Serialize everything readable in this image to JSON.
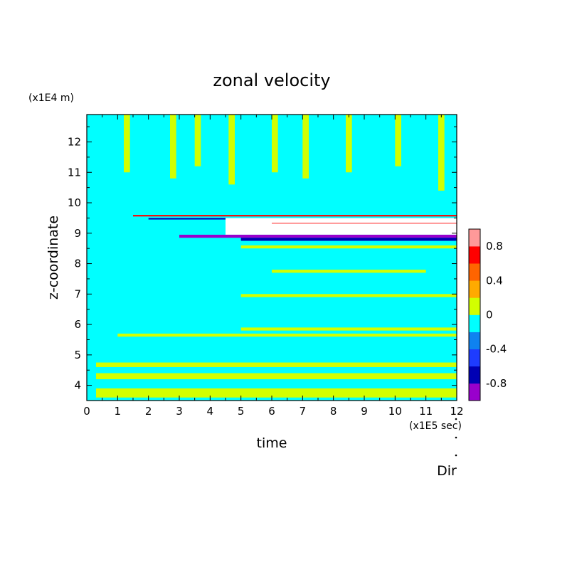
{
  "chart_data": {
    "type": "heatmap",
    "title": "zonal velocity",
    "xlabel": "time",
    "ylabel": "z-coordinate",
    "x_unit": "(x1E5 sec)",
    "y_unit": "(x1E4 m)",
    "xlim": [
      0,
      12
    ],
    "ylim": [
      3.5,
      12.9
    ],
    "x_ticks": [
      "0",
      "1",
      "2",
      "3",
      "4",
      "5",
      "6",
      "7",
      "8",
      "9",
      "10",
      "11",
      "12"
    ],
    "y_ticks": [
      "4",
      "5",
      "6",
      "7",
      "8",
      "9",
      "10",
      "11",
      "12"
    ],
    "x_tick_values": [
      0,
      1,
      2,
      3,
      4,
      5,
      6,
      7,
      8,
      9,
      10,
      11,
      12
    ],
    "y_tick_values": [
      4,
      5,
      6,
      7,
      8,
      9,
      10,
      11,
      12
    ],
    "colorbar": {
      "range": [
        -1.0,
        1.0
      ],
      "step": 0.2,
      "colors": [
        "#9900cc",
        "#0000b4",
        "#1e3cff",
        "#0f82f0",
        "#00ffff",
        "#d2ff00",
        "#ffaa00",
        "#ff6400",
        "#ff0000",
        "#ff9999"
      ],
      "tick_labels": [
        "0.8",
        "0.4",
        "0",
        "-0.4",
        "-0.8"
      ],
      "tick_values": [
        0.8,
        0.4,
        0,
        -0.4,
        -0.8
      ]
    },
    "background_value": -0.1,
    "regions": [
      {
        "t": [
          0.0,
          0.5
        ],
        "z": [
          3.5,
          12.9
        ],
        "v": -0.1
      },
      {
        "t": [
          1.2,
          1.4
        ],
        "z": [
          11.0,
          12.9
        ],
        "v": 0.1
      },
      {
        "t": [
          2.7,
          2.9
        ],
        "z": [
          10.8,
          12.9
        ],
        "v": 0.1
      },
      {
        "t": [
          3.5,
          3.7
        ],
        "z": [
          11.2,
          12.9
        ],
        "v": 0.1
      },
      {
        "t": [
          4.6,
          4.8
        ],
        "z": [
          10.6,
          12.9
        ],
        "v": 0.1
      },
      {
        "t": [
          6.0,
          6.2
        ],
        "z": [
          11.0,
          12.9
        ],
        "v": 0.1
      },
      {
        "t": [
          7.0,
          7.2
        ],
        "z": [
          10.8,
          12.9
        ],
        "v": 0.1
      },
      {
        "t": [
          8.4,
          8.6
        ],
        "z": [
          11.0,
          12.9
        ],
        "v": 0.1
      },
      {
        "t": [
          10.0,
          10.2
        ],
        "z": [
          11.2,
          12.9
        ],
        "v": 0.1
      },
      {
        "t": [
          11.4,
          11.6
        ],
        "z": [
          10.4,
          12.9
        ],
        "v": 0.1
      },
      {
        "t": [
          1.5,
          12.0
        ],
        "z": [
          9.55,
          9.6
        ],
        "v": 0.7
      },
      {
        "t": [
          2.0,
          12.0
        ],
        "z": [
          9.45,
          9.5
        ],
        "v": -0.7
      },
      {
        "t": [
          4.5,
          12.0
        ],
        "z": [
          8.95,
          9.5
        ],
        "v": 1.2
      },
      {
        "t": [
          3.0,
          12.0
        ],
        "z": [
          8.85,
          8.95
        ],
        "v": -0.9
      },
      {
        "t": [
          5.0,
          12.0
        ],
        "z": [
          8.75,
          8.85
        ],
        "v": -0.7
      },
      {
        "t": [
          6.0,
          12.0
        ],
        "z": [
          9.3,
          9.35
        ],
        "v": 0.8
      },
      {
        "t": [
          5.0,
          12.0
        ],
        "z": [
          8.5,
          8.6
        ],
        "v": 0.1
      },
      {
        "t": [
          5.0,
          12.0
        ],
        "z": [
          5.8,
          5.9
        ],
        "v": 0.1
      },
      {
        "t": [
          1.0,
          12.0
        ],
        "z": [
          5.6,
          5.7
        ],
        "v": 0.1
      },
      {
        "t": [
          0.3,
          12.0
        ],
        "z": [
          4.6,
          4.75
        ],
        "v": 0.1
      },
      {
        "t": [
          0.3,
          12.0
        ],
        "z": [
          4.2,
          4.4
        ],
        "v": 0.1
      },
      {
        "t": [
          0.3,
          12.0
        ],
        "z": [
          3.6,
          3.9
        ],
        "v": 0.1
      },
      {
        "t": [
          5.0,
          12.0
        ],
        "z": [
          6.9,
          7.0
        ],
        "v": 0.1
      },
      {
        "t": [
          6.0,
          11.0
        ],
        "z": [
          7.7,
          7.8
        ],
        "v": 0.1
      }
    ]
  },
  "annotations": {
    "dir_label": "Dir"
  }
}
